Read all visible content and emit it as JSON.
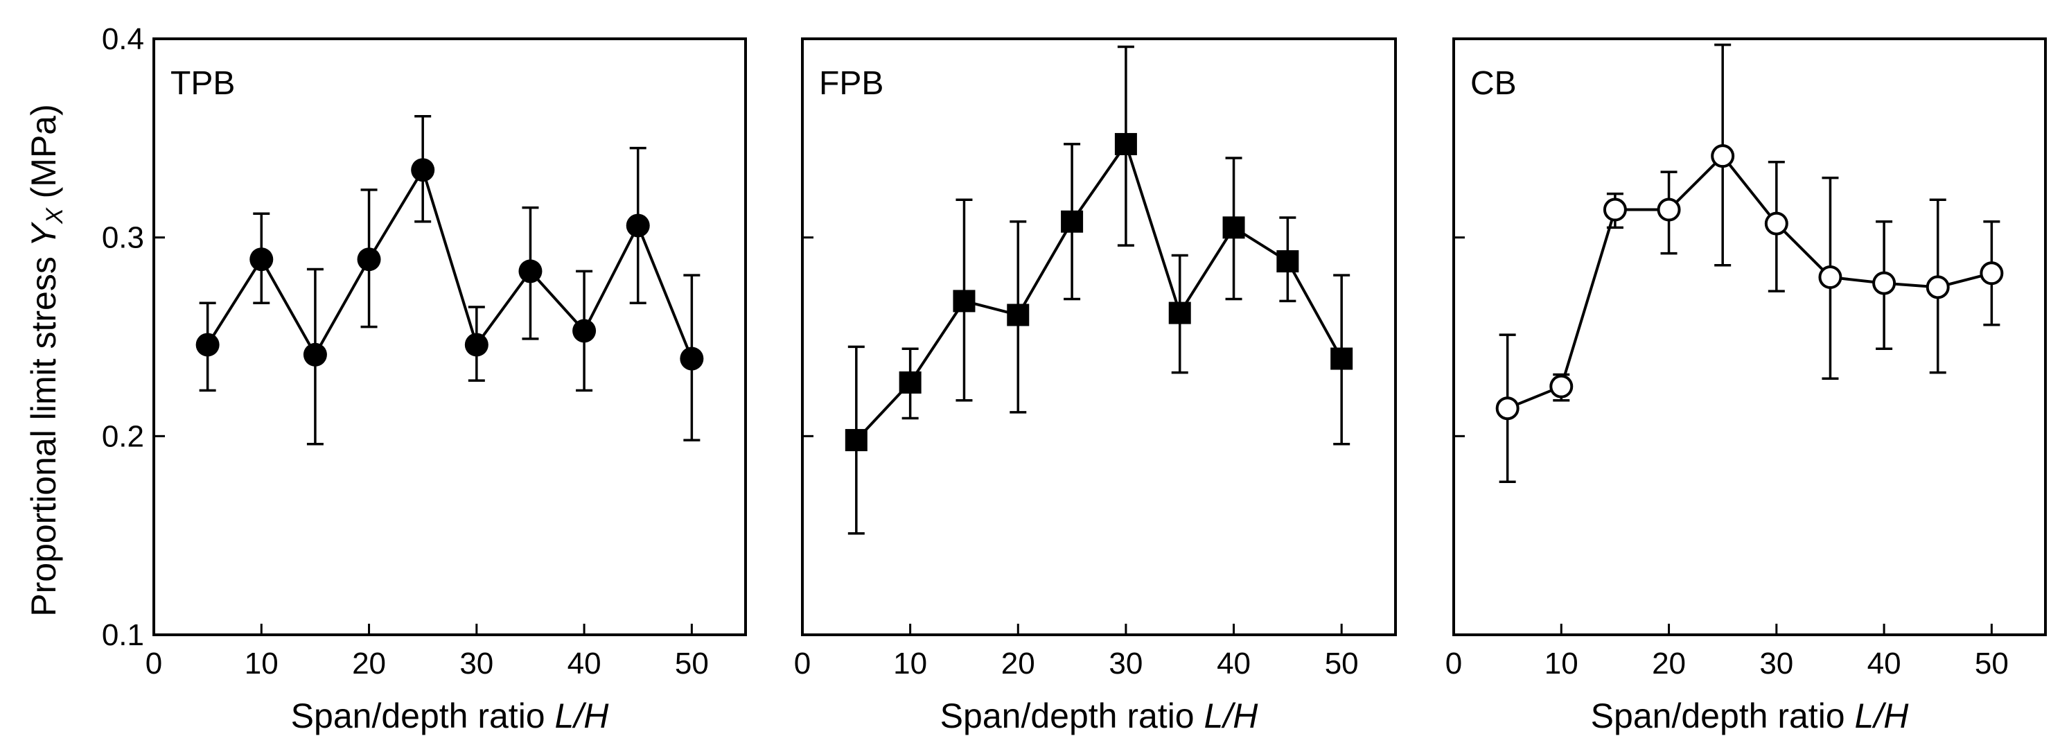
{
  "figure": {
    "ylabel_main": "Proportional limit stress ",
    "ylabel_symbol": "Y",
    "ylabel_sub": "X",
    "ylabel_unit": " (MPa)",
    "xlabel_main": "Span/depth ratio ",
    "xlabel_italic": "L/H"
  },
  "chart_data": [
    {
      "type": "line",
      "panel_label": "TPB",
      "marker": "filled-circle",
      "x": [
        5,
        10,
        15,
        20,
        25,
        30,
        35,
        40,
        45,
        50
      ],
      "y": [
        0.246,
        0.289,
        0.241,
        0.289,
        0.334,
        0.246,
        0.283,
        0.253,
        0.306,
        0.239
      ],
      "err_low": [
        0.223,
        0.267,
        0.196,
        0.255,
        0.308,
        0.228,
        0.249,
        0.223,
        0.267,
        0.198
      ],
      "err_high": [
        0.267,
        0.312,
        0.284,
        0.324,
        0.361,
        0.265,
        0.315,
        0.283,
        0.345,
        0.281
      ],
      "xlim": [
        0,
        55
      ],
      "ylim": [
        0.1,
        0.4
      ],
      "xticks": [
        0,
        10,
        20,
        30,
        40,
        50
      ],
      "yticks": [
        0.1,
        0.2,
        0.3,
        0.4
      ],
      "ytick_labels": [
        "0.1",
        "0.2",
        "0.3",
        "0.4"
      ],
      "xlabel": "Span/depth ratio L/H",
      "ylabel": "Proportional limit stress YX (MPa)"
    },
    {
      "type": "line",
      "panel_label": "FPB",
      "marker": "filled-square",
      "x": [
        5,
        10,
        15,
        20,
        25,
        30,
        35,
        40,
        45,
        50
      ],
      "y": [
        0.198,
        0.227,
        0.268,
        0.261,
        0.308,
        0.347,
        0.262,
        0.305,
        0.288,
        0.239
      ],
      "err_low": [
        0.151,
        0.209,
        0.218,
        0.212,
        0.269,
        0.296,
        0.232,
        0.269,
        0.268,
        0.196
      ],
      "err_high": [
        0.245,
        0.244,
        0.319,
        0.308,
        0.347,
        0.396,
        0.291,
        0.34,
        0.31,
        0.281
      ],
      "xlim": [
        0,
        55
      ],
      "ylim": [
        0.1,
        0.4
      ],
      "xticks": [
        0,
        10,
        20,
        30,
        40,
        50
      ],
      "yticks": [
        0.1,
        0.2,
        0.3,
        0.4
      ],
      "ytick_labels": [],
      "xlabel": "Span/depth ratio L/H",
      "ylabel": ""
    },
    {
      "type": "line",
      "panel_label": "CB",
      "marker": "open-circle",
      "x": [
        5,
        10,
        15,
        20,
        25,
        30,
        35,
        40,
        45,
        50
      ],
      "y": [
        0.214,
        0.225,
        0.314,
        0.314,
        0.341,
        0.307,
        0.28,
        0.277,
        0.275,
        0.282
      ],
      "err_low": [
        0.177,
        0.218,
        0.305,
        0.292,
        0.286,
        0.273,
        0.229,
        0.244,
        0.232,
        0.256
      ],
      "err_high": [
        0.251,
        0.231,
        0.322,
        0.333,
        0.397,
        0.338,
        0.33,
        0.308,
        0.319,
        0.308
      ],
      "xlim": [
        0,
        55
      ],
      "ylim": [
        0.1,
        0.4
      ],
      "xticks": [
        0,
        10,
        20,
        30,
        40,
        50
      ],
      "yticks": [
        0.1,
        0.2,
        0.3,
        0.4
      ],
      "ytick_labels": [],
      "xlabel": "Span/depth ratio L/H",
      "ylabel": ""
    }
  ]
}
